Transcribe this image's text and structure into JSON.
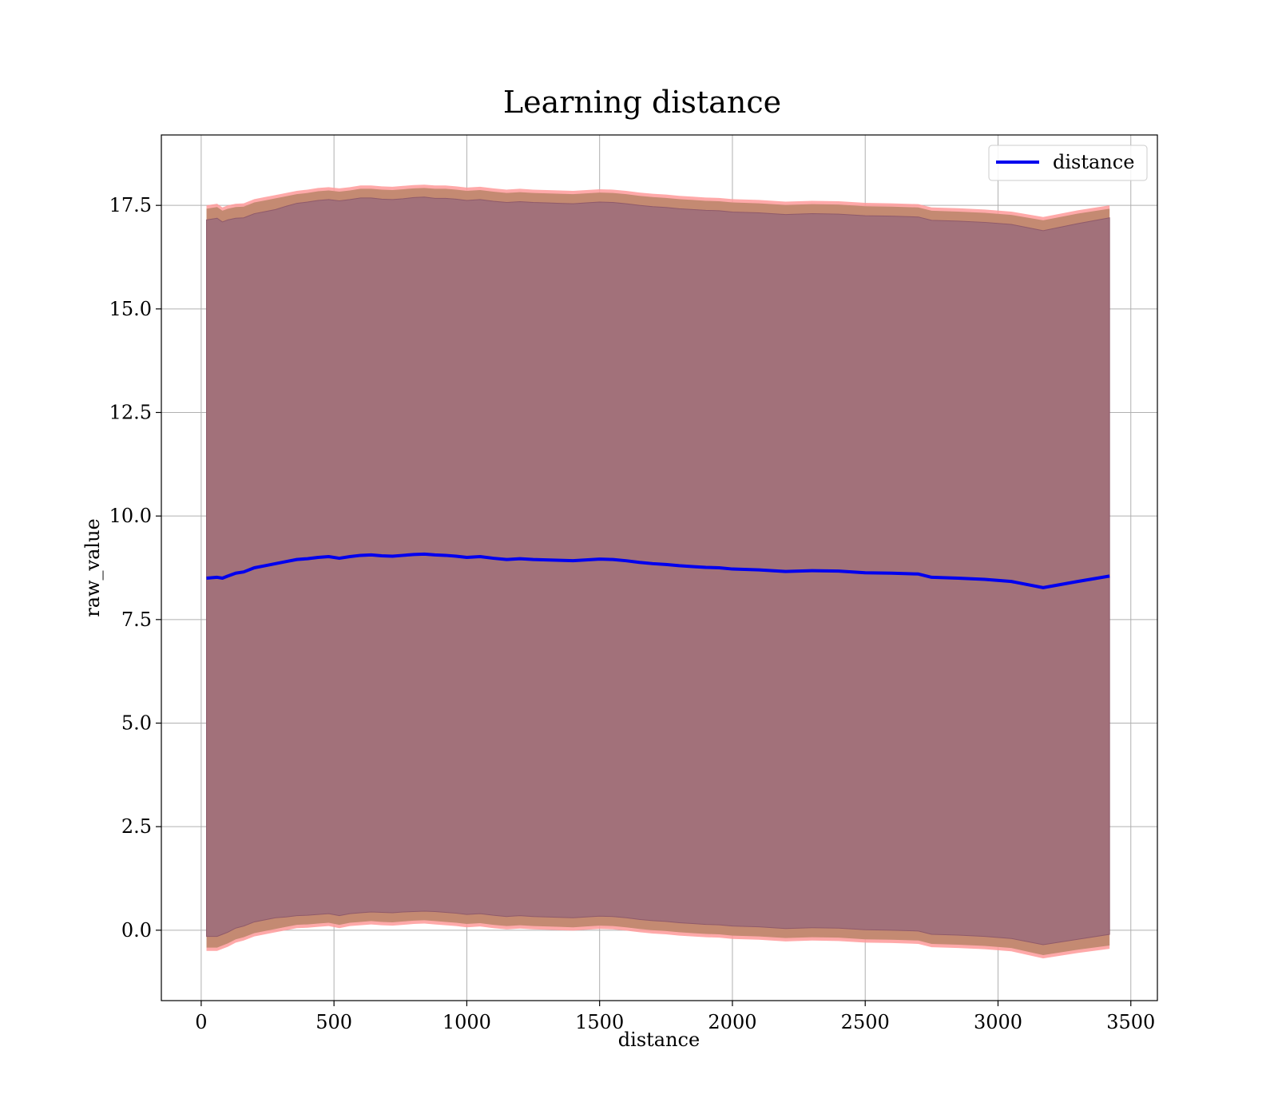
{
  "chart_data": {
    "type": "line",
    "title": "Learning distance",
    "xlabel": "distance",
    "ylabel": "raw_value",
    "xlim": [
      -150,
      3600
    ],
    "ylim": [
      -1.7,
      19.2
    ],
    "xticks": [
      0,
      500,
      1000,
      1500,
      2000,
      2500,
      3000,
      3500
    ],
    "yticks": [
      0.0,
      2.5,
      5.0,
      7.5,
      10.0,
      12.5,
      15.0,
      17.5
    ],
    "xtick_labels": [
      "0",
      "500",
      "1000",
      "1500",
      "2000",
      "2500",
      "3000",
      "3500"
    ],
    "ytick_labels": [
      "0.0",
      "2.5",
      "5.0",
      "7.5",
      "10.0",
      "12.5",
      "15.0",
      "17.5"
    ],
    "grid": true,
    "legend": {
      "position": "top-right",
      "entries": [
        "distance"
      ]
    },
    "colors": {
      "line": "#0000ee",
      "band_outer": "#ff9a9a",
      "band_mid": "#c48a72",
      "band_inner": "#a2717a"
    },
    "series": [
      {
        "name": "distance",
        "x": [
          20,
          60,
          80,
          100,
          130,
          160,
          200,
          240,
          280,
          320,
          360,
          400,
          440,
          480,
          520,
          560,
          600,
          640,
          680,
          720,
          760,
          800,
          840,
          880,
          920,
          960,
          1000,
          1050,
          1100,
          1150,
          1200,
          1250,
          1300,
          1350,
          1400,
          1450,
          1500,
          1550,
          1600,
          1650,
          1700,
          1750,
          1800,
          1850,
          1900,
          1950,
          2000,
          2100,
          2200,
          2300,
          2400,
          2500,
          2600,
          2700,
          2750,
          2850,
          2950,
          3050,
          3170,
          3300,
          3420
        ],
        "values": [
          8.5,
          8.52,
          8.5,
          8.55,
          8.62,
          8.65,
          8.75,
          8.8,
          8.85,
          8.9,
          8.95,
          8.97,
          9.0,
          9.02,
          8.98,
          9.02,
          9.05,
          9.06,
          9.04,
          9.03,
          9.05,
          9.07,
          9.08,
          9.06,
          9.05,
          9.03,
          9.0,
          9.02,
          8.98,
          8.95,
          8.97,
          8.95,
          8.94,
          8.93,
          8.92,
          8.94,
          8.96,
          8.95,
          8.92,
          8.88,
          8.85,
          8.83,
          8.8,
          8.78,
          8.76,
          8.75,
          8.72,
          8.7,
          8.66,
          8.68,
          8.67,
          8.63,
          8.62,
          8.6,
          8.52,
          8.5,
          8.47,
          8.42,
          8.27,
          8.42,
          8.55
        ],
        "inner_band": {
          "lower": [
            -0.15,
            -0.15,
            -0.1,
            -0.05,
            0.05,
            0.1,
            0.2,
            0.25,
            0.3,
            0.32,
            0.35,
            0.36,
            0.38,
            0.4,
            0.35,
            0.4,
            0.42,
            0.44,
            0.43,
            0.42,
            0.44,
            0.45,
            0.46,
            0.45,
            0.43,
            0.41,
            0.38,
            0.4,
            0.36,
            0.33,
            0.35,
            0.33,
            0.32,
            0.31,
            0.3,
            0.32,
            0.34,
            0.33,
            0.3,
            0.26,
            0.23,
            0.21,
            0.18,
            0.16,
            0.14,
            0.13,
            0.1,
            0.08,
            0.04,
            0.06,
            0.05,
            0.01,
            0.0,
            -0.02,
            -0.1,
            -0.12,
            -0.15,
            -0.2,
            -0.35,
            -0.22,
            -0.1
          ],
          "upper": [
            17.15,
            17.19,
            17.1,
            17.15,
            17.19,
            17.2,
            17.3,
            17.35,
            17.4,
            17.48,
            17.55,
            17.58,
            17.62,
            17.64,
            17.61,
            17.64,
            17.68,
            17.68,
            17.65,
            17.64,
            17.66,
            17.69,
            17.7,
            17.67,
            17.67,
            17.65,
            17.62,
            17.64,
            17.6,
            17.57,
            17.59,
            17.57,
            17.56,
            17.55,
            17.54,
            17.56,
            17.58,
            17.57,
            17.54,
            17.5,
            17.47,
            17.45,
            17.42,
            17.4,
            17.38,
            17.37,
            17.34,
            17.32,
            17.28,
            17.3,
            17.29,
            17.25,
            17.24,
            17.22,
            17.14,
            17.12,
            17.09,
            17.04,
            16.89,
            17.06,
            17.2
          ]
        },
        "outer_band": {
          "lower": [
            -0.5,
            -0.5,
            -0.45,
            -0.4,
            -0.3,
            -0.25,
            -0.15,
            -0.1,
            -0.05,
            0.0,
            0.05,
            0.06,
            0.08,
            0.1,
            0.05,
            0.1,
            0.12,
            0.14,
            0.12,
            0.11,
            0.13,
            0.15,
            0.16,
            0.14,
            0.12,
            0.1,
            0.07,
            0.09,
            0.05,
            0.02,
            0.04,
            0.02,
            0.01,
            0.0,
            -0.01,
            0.01,
            0.03,
            0.02,
            -0.01,
            -0.05,
            -0.08,
            -0.1,
            -0.13,
            -0.15,
            -0.17,
            -0.18,
            -0.21,
            -0.23,
            -0.27,
            -0.25,
            -0.26,
            -0.3,
            -0.31,
            -0.33,
            -0.41,
            -0.43,
            -0.46,
            -0.51,
            -0.68,
            -0.55,
            -0.45
          ],
          "upper": [
            17.5,
            17.54,
            17.45,
            17.5,
            17.54,
            17.55,
            17.65,
            17.7,
            17.75,
            17.8,
            17.85,
            17.88,
            17.92,
            17.94,
            17.91,
            17.94,
            17.98,
            17.98,
            17.96,
            17.95,
            17.97,
            17.99,
            18.0,
            17.98,
            17.98,
            17.96,
            17.93,
            17.95,
            17.91,
            17.88,
            17.9,
            17.88,
            17.87,
            17.86,
            17.85,
            17.87,
            17.89,
            17.88,
            17.85,
            17.81,
            17.78,
            17.76,
            17.73,
            17.71,
            17.69,
            17.68,
            17.65,
            17.63,
            17.59,
            17.61,
            17.6,
            17.56,
            17.55,
            17.53,
            17.45,
            17.43,
            17.4,
            17.35,
            17.22,
            17.38,
            17.5
          ]
        }
      }
    ]
  }
}
